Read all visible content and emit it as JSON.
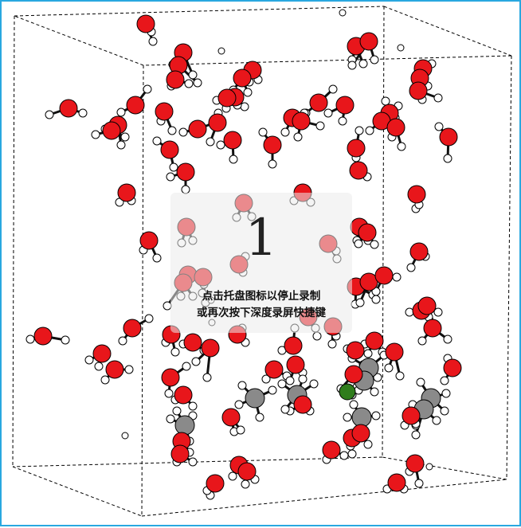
{
  "viewer": {
    "description_visible": false,
    "colors": {
      "frame_border": "#29a8e0",
      "oxygen": "#e8161b",
      "hydrogen": "#ffffff",
      "carbon": "#8a8a8a",
      "special_atom": "#2f7d1c",
      "bond": "#111111",
      "cell": "#000000"
    }
  },
  "recording_overlay": {
    "countdown": "1",
    "hint_line_1": "点击托盘图标以停止录制",
    "hint_line_2": "或再次按下深度录屏快捷键"
  }
}
